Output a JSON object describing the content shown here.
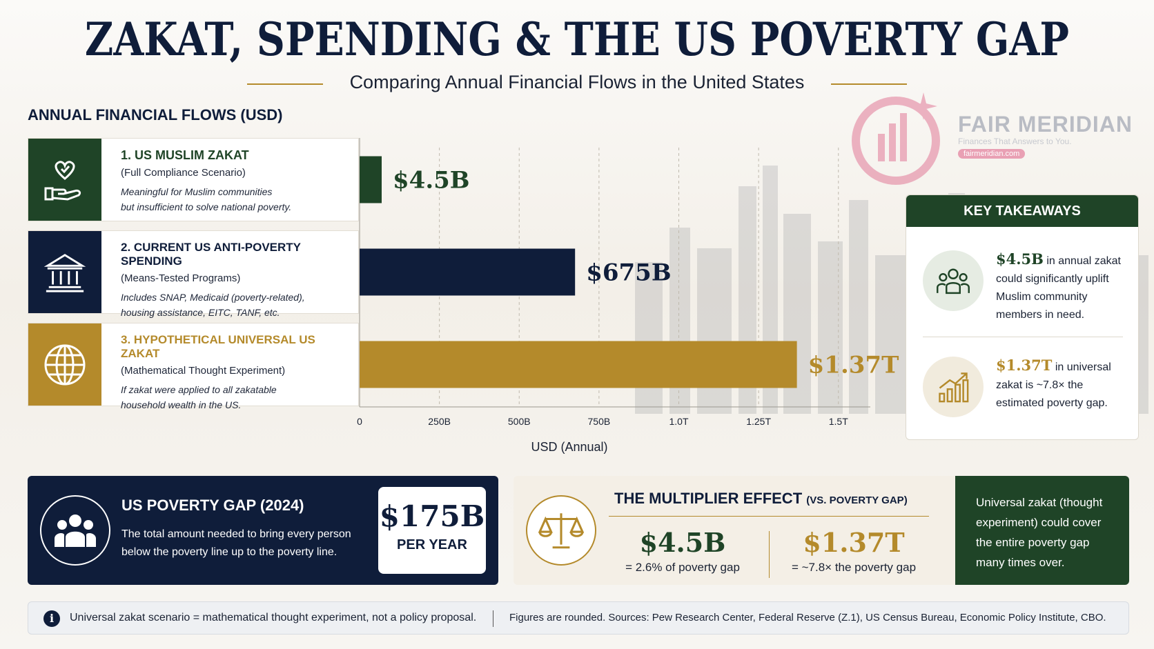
{
  "header": {
    "title": "ZAKAT, SPENDING & THE US POVERTY GAP",
    "subtitle": "Comparing Annual Financial Flows in the United States"
  },
  "logo": {
    "name": "FAIR MERIDIAN",
    "tagline": "Finances That Answers to You.",
    "url": "fairmeridian.com"
  },
  "section_label": "ANNUAL FINANCIAL FLOWS (USD)",
  "rows": [
    {
      "title": "1. US MUSLIM ZAKAT",
      "subtitle": "(Full Compliance Scenario)",
      "desc_1": "Meaningful for Muslim communities",
      "desc_2": "but insufficient to solve national poverty.",
      "icon": "heart-hand-icon",
      "color": "#1f4427"
    },
    {
      "title": "2. CURRENT US ANTI-POVERTY SPENDING",
      "subtitle": "(Means-Tested Programs)",
      "desc_1": "Includes SNAP, Medicaid (poverty-related),",
      "desc_2": "housing assistance, EITC, TANF, etc.",
      "icon": "bank-building-icon",
      "color": "#0f1d3a"
    },
    {
      "title": "3. HYPOTHETICAL UNIVERSAL US ZAKAT",
      "subtitle": "(Mathematical Thought Experiment)",
      "desc_1": "If zakat were applied to all zakatable",
      "desc_2": "household wealth in the US.",
      "icon": "globe-icon",
      "color": "#b48a2b"
    }
  ],
  "chart_data": {
    "type": "bar",
    "orientation": "horizontal",
    "categories": [
      "1. US MUSLIM ZAKAT",
      "2. CURRENT US ANTI-POVERTY SPENDING",
      "3. HYPOTHETICAL UNIVERSAL US ZAKAT"
    ],
    "values": [
      4.5,
      675,
      1370
    ],
    "value_unit": "billion USD",
    "value_labels": [
      "$4.5B",
      "$675B",
      "$1.37T"
    ],
    "colors": [
      "#1f4427",
      "#0f1d3a",
      "#b48a2b"
    ],
    "xlabel": "USD (Annual)",
    "xlim": [
      0,
      1600
    ],
    "xticks": [
      0,
      250,
      500,
      750,
      1000,
      1250,
      1500
    ],
    "xtick_labels": [
      "0",
      "250B",
      "500B",
      "750B",
      "1.0T",
      "1.25T",
      "1.5T"
    ],
    "grid": "dashed vertical"
  },
  "takeaways": {
    "heading": "KEY TAKEAWAYS",
    "items": [
      {
        "big": "$4.5B",
        "text": " in annual zakat could significantly uplift Muslim community members in need.",
        "icon": "people-group-icon"
      },
      {
        "big": "$1.37T",
        "text": " in universal zakat is ~7.8× the estimated poverty gap.",
        "icon": "bar-growth-icon"
      }
    ]
  },
  "poverty_gap": {
    "title": "US POVERTY GAP (2024)",
    "desc": "The total amount needed to bring every person below the poverty line up to the poverty line.",
    "value": "$175B",
    "per": "PER YEAR"
  },
  "multiplier": {
    "title": "THE MULTIPLIER EFFECT",
    "title_small": "(VS. POVERTY GAP)",
    "left_value": "$4.5B",
    "left_note": "= 2.6% of poverty gap",
    "right_value": "$1.37T",
    "right_note": "= ~7.8× the poverty gap",
    "side_text": "Universal zakat (thought experiment) could cover the entire poverty gap many times over."
  },
  "footer": {
    "note_1": "Universal zakat scenario = mathematical thought experiment, not a policy proposal.",
    "note_2": "Figures are rounded. Sources: Pew Research Center, Federal Reserve (Z.1), US Census Bureau, Economic Policy Institute, CBO."
  }
}
